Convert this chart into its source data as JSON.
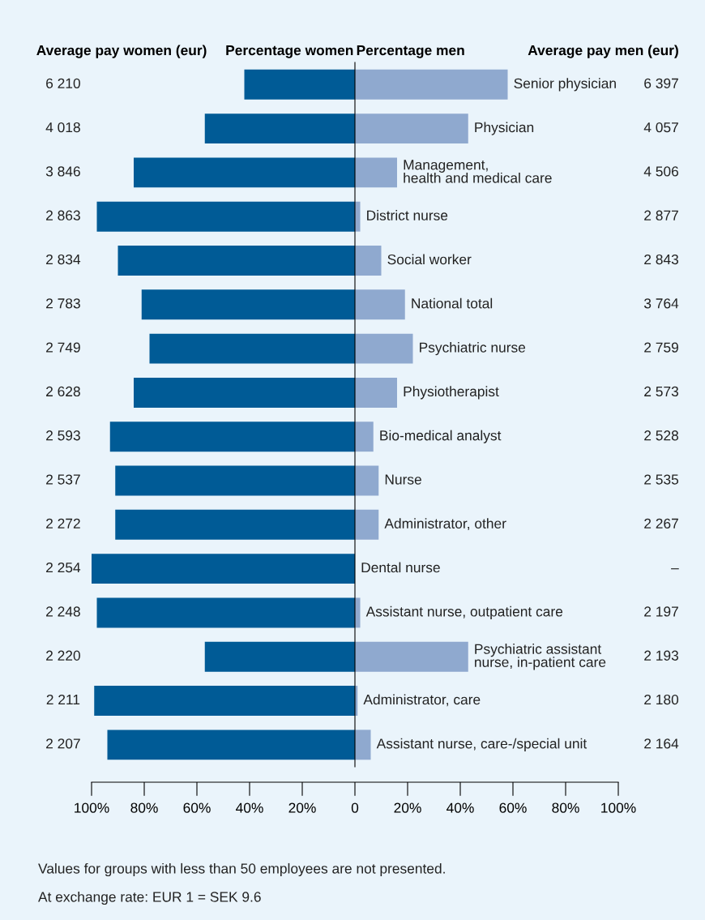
{
  "chart_data": {
    "type": "bar",
    "orientation": "horizontal",
    "stacked": true,
    "categories": [
      "Senior physician",
      "Physician",
      "Management,\nhealth and medical care",
      "District nurse",
      "Social worker",
      "National total",
      "Psychiatric nurse",
      "Physiotherapist",
      "Bio-medical analyst",
      "Nurse",
      "Administrator, other",
      "Dental nurse",
      "Assistant nurse, outpatient care",
      "Psychiatric assistant\nnurse, in-patient care",
      "Administrator, care",
      "Assistant nurse, care-/special unit"
    ],
    "series": [
      {
        "name": "Percentage women",
        "color": "#005b96",
        "values": [
          -42,
          -57,
          -84,
          -98,
          -90,
          -81,
          -78,
          -84,
          -93,
          -91,
          -91,
          -100,
          -98,
          -57,
          -99,
          -94
        ]
      },
      {
        "name": "Percentage men",
        "color": "#8fa9cf",
        "values": [
          58,
          43,
          16,
          2,
          10,
          19,
          22,
          16,
          7,
          9,
          9,
          0,
          2,
          43,
          1,
          6
        ]
      }
    ],
    "xlim": [
      -100,
      100
    ],
    "xticks": [
      {
        "value": -100,
        "label": "100%"
      },
      {
        "value": -80,
        "label": "80%"
      },
      {
        "value": -60,
        "label": "60%"
      },
      {
        "value": -40,
        "label": "40%"
      },
      {
        "value": -20,
        "label": "20%"
      },
      0,
      {
        "value": 20,
        "label": "20%"
      },
      {
        "value": 40,
        "label": "40%"
      },
      {
        "value": 60,
        "label": "60%"
      },
      {
        "value": 80,
        "label": "80%"
      },
      {
        "value": 100,
        "label": "100%"
      }
    ],
    "grid": false,
    "legend": false,
    "annotations": [
      "Average pay women (eur)",
      "6 210",
      "4 018",
      "3 846",
      "2 863",
      "2 834",
      "2 783",
      "2 749",
      "2 628",
      "2 593",
      "2 537",
      "2 272",
      "2 254",
      "2 248",
      "2 220",
      "2 211",
      "2 207",
      "Average pay men (eur)",
      "6 397",
      "4 057",
      "4 506",
      "2 877",
      "2 843",
      "3 764",
      "2 759",
      "2 573",
      "2 528",
      "2 535",
      "2 267",
      "–",
      "2 197",
      "2 193",
      "2 180",
      "2 164",
      "Values for groups with less than 50 employees are not presented.",
      "At exchange rate: EUR 1 = SEK 9.6"
    ]
  }
}
